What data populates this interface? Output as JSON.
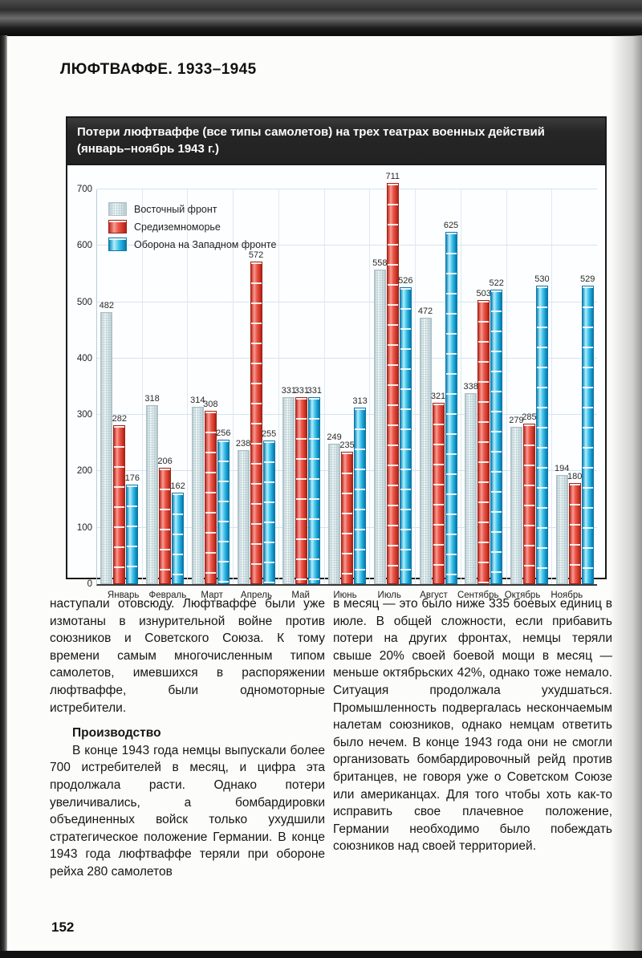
{
  "page": {
    "header": "ЛЮФТВАФФЕ. 1933–1945",
    "page_number": "152"
  },
  "chart": {
    "title_line1": "Потери люфтваффе (все типы самолетов) на трех театрах военных действий",
    "title_line2": "(январь–ноябрь 1943 г.)"
  },
  "chart_data": {
    "type": "bar",
    "title": "Потери люфтваффе (все типы самолетов) на трех театрах военных действий (январь–ноябрь 1943 г.)",
    "categories": [
      "Январь",
      "Февраль",
      "Март",
      "Апрель",
      "Май",
      "Июнь",
      "Июль",
      "Август",
      "Сентябрь",
      "Октябрь",
      "Ноябрь"
    ],
    "series": [
      {
        "name": "Восточный фронт",
        "color": "#dce9eb",
        "values": [
          482,
          318,
          314,
          238,
          331,
          249,
          558,
          472,
          338,
          279,
          194
        ]
      },
      {
        "name": "Средиземноморье",
        "color": "#e84a3c",
        "values": [
          282,
          206,
          308,
          572,
          331,
          235,
          711,
          321,
          503,
          285,
          180
        ]
      },
      {
        "name": "Оборона на Западном фронте",
        "color": "#3cbfe6",
        "values": [
          176,
          162,
          256,
          255,
          331,
          313,
          526,
          625,
          522,
          530,
          529
        ]
      }
    ],
    "ylim": [
      0,
      700
    ],
    "yticks": [
      0,
      100,
      200,
      300,
      400,
      500,
      600,
      700
    ],
    "grid": true,
    "legend_position": "top-left"
  },
  "body": {
    "left": {
      "para1": "наступали отовсюду. Люфтваффе были уже измотаны в изнурительной войне против союзников и Советского Союза. К тому времени самым многочисленным типом самолетов, имевшихся в распоряжении люфтваффе, были одномоторные истребители.",
      "heading": "Производство",
      "para2": "В конце 1943 года немцы выпускали более 700 истребителей в месяц, и цифра эта продолжала расти. Однако потери увеличивались, а бомбардировки объединенных войск только ухудшили стратегическое положение Германии. В конце 1943 года люфтваффе теряли при обороне рейха 280 самолетов"
    },
    "right": {
      "para1": "в месяц — это было ниже 335 боевых единиц в июле. В общей сложности, если прибавить потери на других фронтах, немцы теряли свыше 20% своей боевой мощи в месяц — меньше октябрьских 42%, однако тоже немало. Ситуация продолжала ухудшаться. Промышленность подвергалась нескончаемым налетам союзников, однако немцам ответить было нечем. В конце 1943 года они не смогли организовать бомбардировочный рейд против британцев, не говоря уже о Советском Союзе или американцах. Для того чтобы хоть как-то исправить свое плачевное положение, Германии необходимо было побеждать союзников над своей территорией."
    }
  }
}
